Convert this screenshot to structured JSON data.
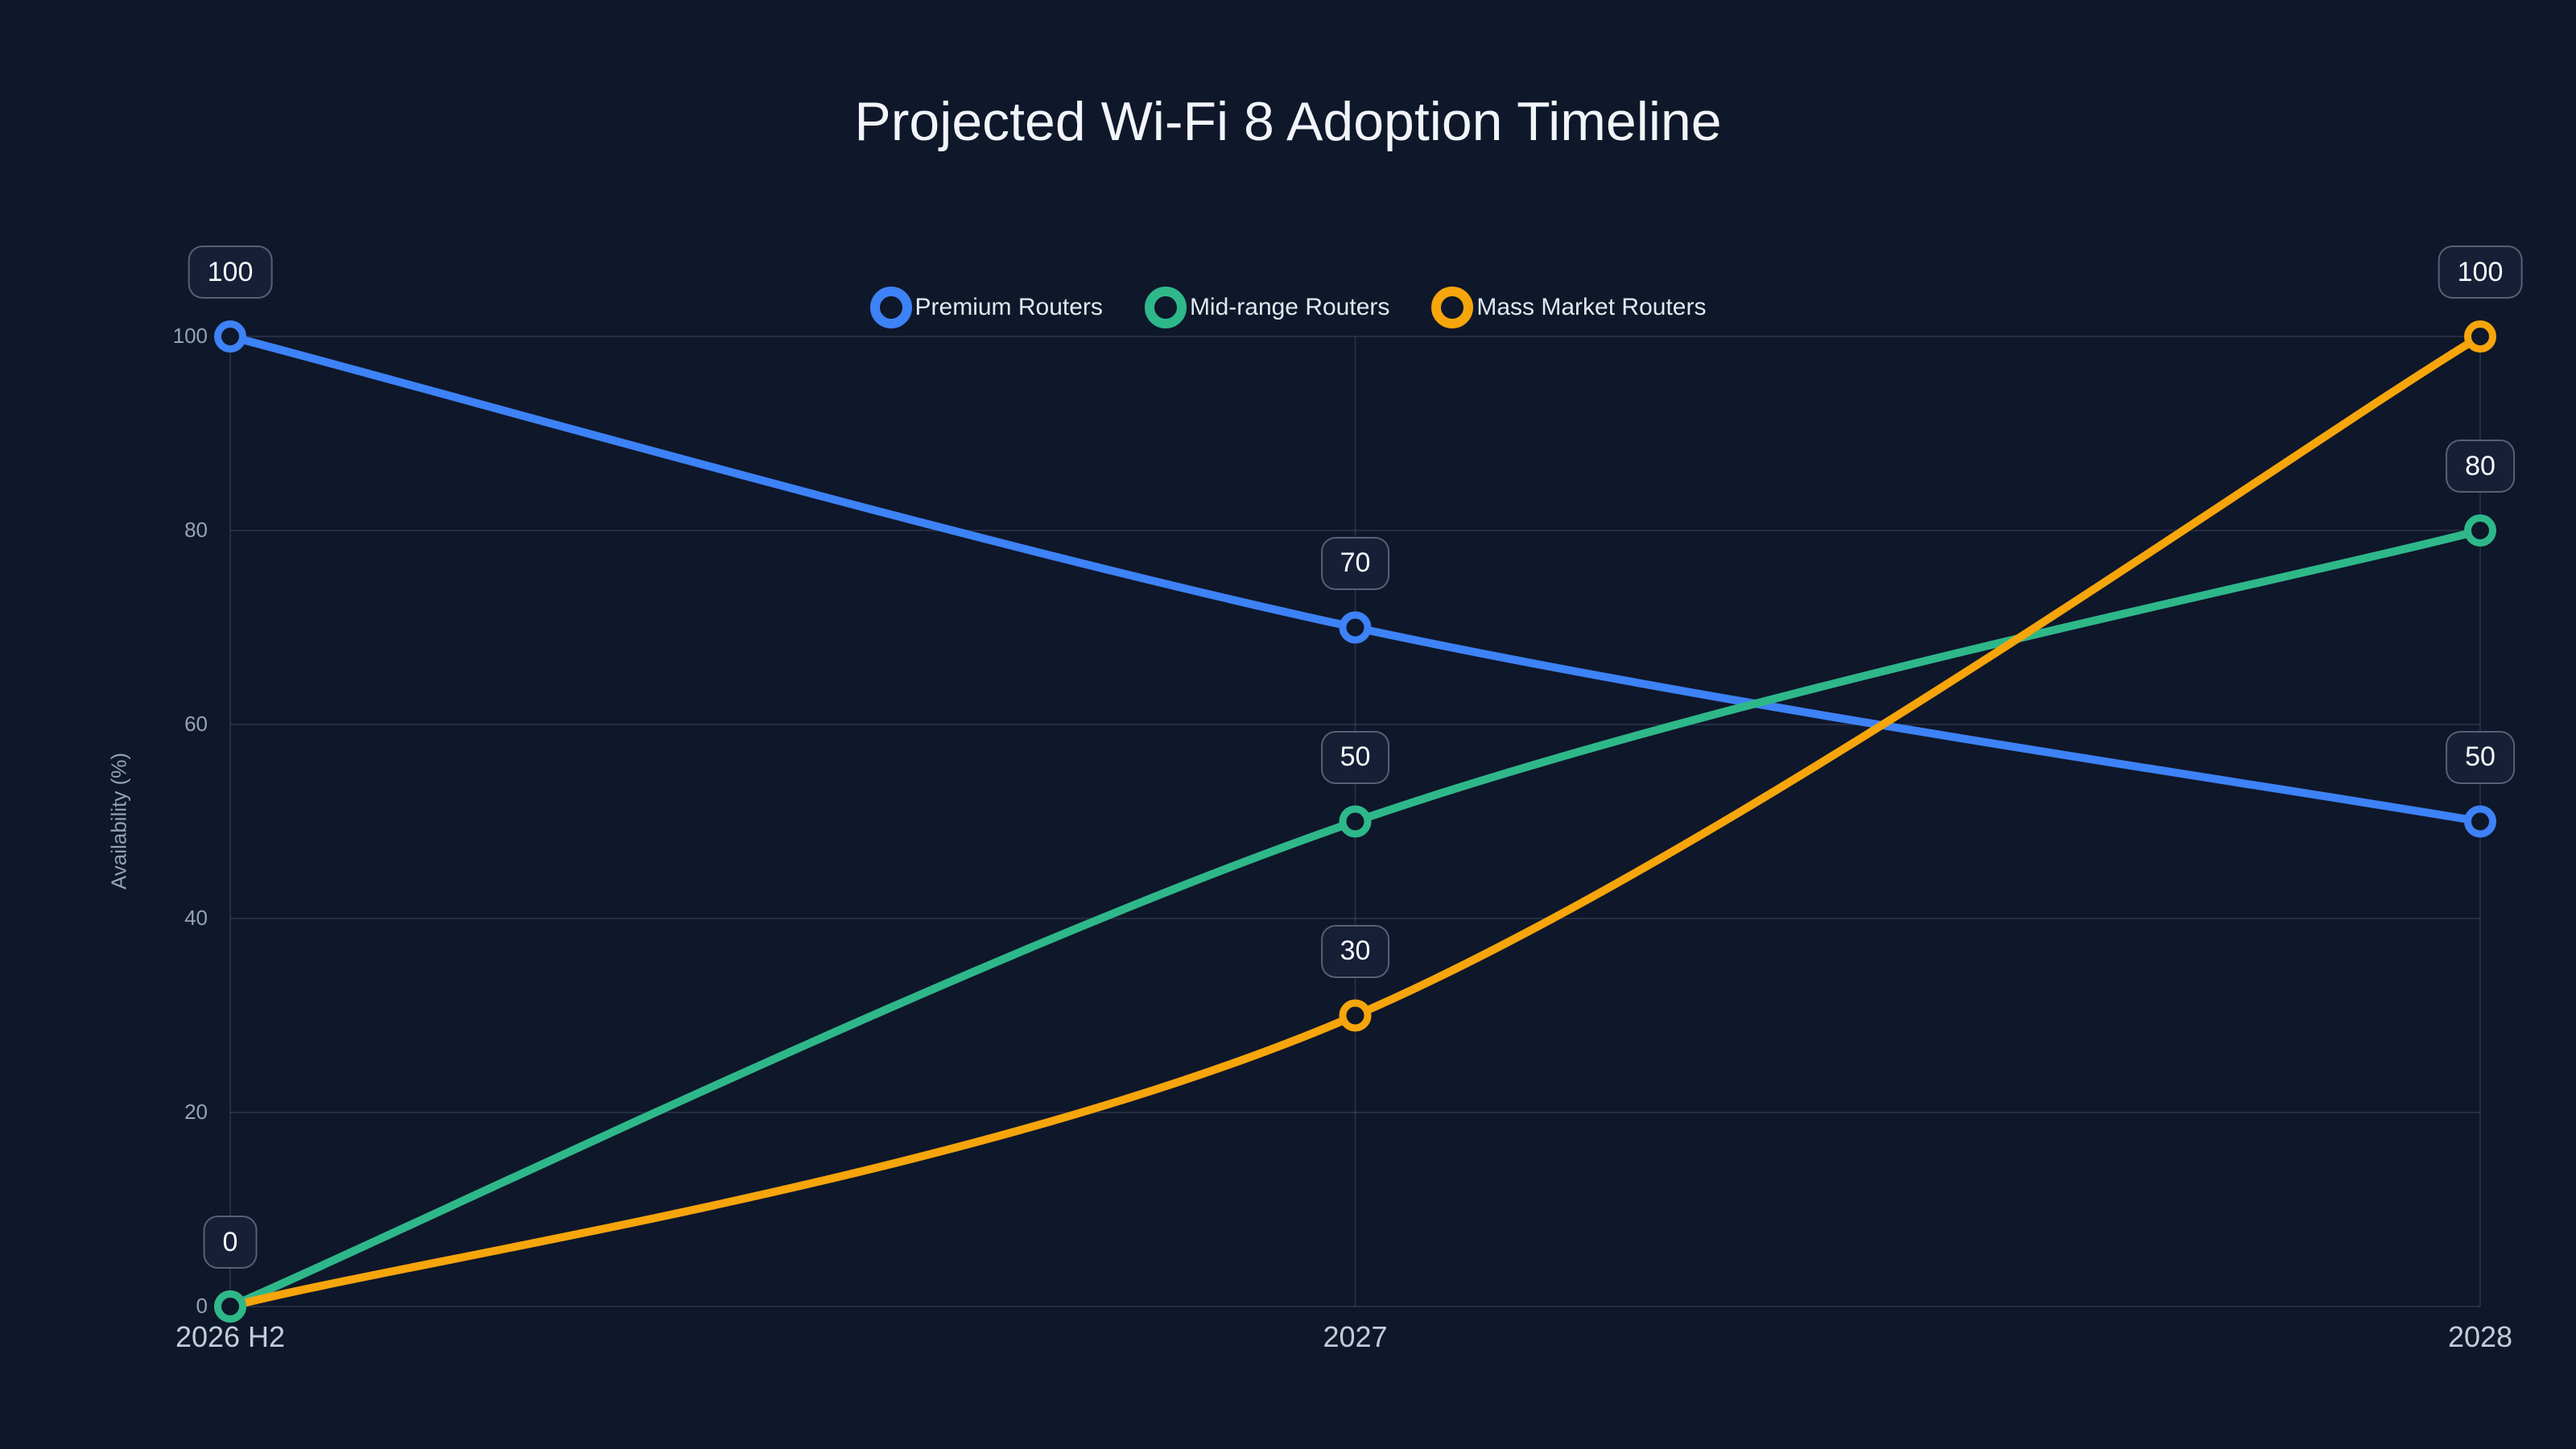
{
  "title": "Projected Wi-Fi 8 Adoption Timeline",
  "chart_data": {
    "type": "line",
    "curve": "spline",
    "title": "Projected Wi-Fi 8 Adoption Timeline",
    "xlabel": "",
    "ylabel": "Availability (%)",
    "categories": [
      "2026 H2",
      "2027",
      "2028"
    ],
    "ylim": [
      0,
      100
    ],
    "yticks": [
      0,
      20,
      40,
      60,
      80,
      100
    ],
    "grid": true,
    "legend_position": "top-center",
    "series": [
      {
        "name": "Premium Routers",
        "color": "#3d82f6",
        "values": [
          100,
          70,
          50
        ]
      },
      {
        "name": "Mid-range Routers",
        "color": "#2eb88a",
        "values": [
          0,
          50,
          80
        ]
      },
      {
        "name": "Mass Market Routers",
        "color": "#f6a50b",
        "values": [
          0,
          30,
          100
        ]
      }
    ],
    "point_labels": [
      {
        "x_index": 0,
        "value": 100,
        "label": "100"
      },
      {
        "x_index": 0,
        "value": 0,
        "label": "0"
      },
      {
        "x_index": 1,
        "value": 70,
        "label": "70"
      },
      {
        "x_index": 1,
        "value": 50,
        "label": "50"
      },
      {
        "x_index": 1,
        "value": 30,
        "label": "30"
      },
      {
        "x_index": 2,
        "value": 100,
        "label": "100"
      },
      {
        "x_index": 2,
        "value": 80,
        "label": "80"
      },
      {
        "x_index": 2,
        "value": 50,
        "label": "50"
      }
    ]
  },
  "colors": {
    "background": "#0f172a",
    "grid": "rgba(148,163,184,0.16)",
    "title_text": "#f1f5f9",
    "tick_text": "#94a3b8",
    "x_tick_text": "#c3ccda",
    "legend_text": "#e2e8f0",
    "label_box_bg": "#161f36",
    "label_box_border": "rgba(148,163,184,0.5)",
    "label_box_text": "#f8fafc"
  }
}
